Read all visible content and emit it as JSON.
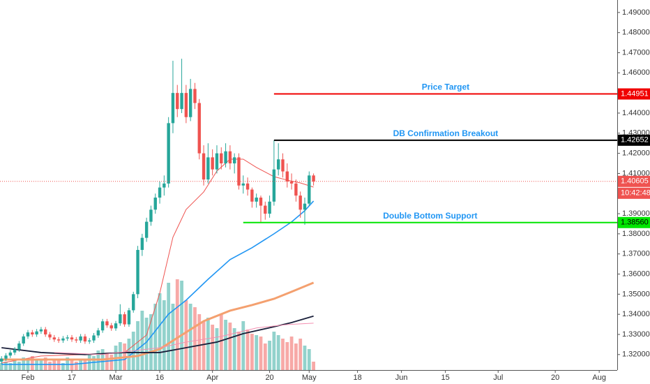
{
  "chart_data": {
    "type": "candlestick",
    "up_color": "#26a69a",
    "down_color": "#ef5350",
    "xlim": [
      -0.35,
      140.1
    ],
    "ylim": [
      1.3123,
      1.4962
    ],
    "xticks": [
      {
        "value": 6,
        "label": "Feb"
      },
      {
        "value": 16,
        "label": "17"
      },
      {
        "value": 26,
        "label": "Mar"
      },
      {
        "value": 36,
        "label": "16"
      },
      {
        "value": 48,
        "label": "Apr"
      },
      {
        "value": 61,
        "label": "20"
      },
      {
        "value": 70,
        "label": "May"
      },
      {
        "value": 81,
        "label": "18"
      },
      {
        "value": 91,
        "label": "Jun"
      },
      {
        "value": 101,
        "label": "15"
      },
      {
        "value": 113,
        "label": "Jul"
      },
      {
        "value": 126,
        "label": "20"
      },
      {
        "value": 136,
        "label": "Aug"
      }
    ],
    "yticks": [
      {
        "value": 1.49,
        "label": "1.49000"
      },
      {
        "value": 1.48,
        "label": "1.48000"
      },
      {
        "value": 1.47,
        "label": "1.47000"
      },
      {
        "value": 1.46,
        "label": "1.46000"
      },
      {
        "value": 1.44,
        "label": "1.44000"
      },
      {
        "value": 1.43,
        "label": "1.43000"
      },
      {
        "value": 1.42,
        "label": "1.42000"
      },
      {
        "value": 1.41,
        "label": "1.41000"
      },
      {
        "value": 1.39,
        "label": "1.39000"
      },
      {
        "value": 1.38,
        "label": "1.38000"
      },
      {
        "value": 1.37,
        "label": "1.37000"
      },
      {
        "value": 1.36,
        "label": "1.36000"
      },
      {
        "value": 1.35,
        "label": "1.35000"
      },
      {
        "value": 1.34,
        "label": "1.34000"
      },
      {
        "value": 1.33,
        "label": "1.33000"
      },
      {
        "value": 1.32,
        "label": "1.32000"
      }
    ],
    "candles": [
      [
        1.3165,
        1.3192,
        1.3153,
        1.318
      ],
      [
        1.318,
        1.3207,
        1.3168,
        1.3195
      ],
      [
        1.3195,
        1.3222,
        1.3183,
        1.321
      ],
      [
        1.321,
        1.3237,
        1.3198,
        1.3225
      ],
      [
        1.3225,
        1.3267,
        1.3213,
        1.3255
      ],
      [
        1.3255,
        1.3302,
        1.3243,
        1.329
      ],
      [
        1.329,
        1.3322,
        1.3278,
        1.331
      ],
      [
        1.331,
        1.3322,
        1.3288,
        1.33
      ],
      [
        1.33,
        1.3327,
        1.3288,
        1.3315
      ],
      [
        1.3315,
        1.3337,
        1.3303,
        1.3325
      ],
      [
        1.3325,
        1.3337,
        1.3288,
        1.33
      ],
      [
        1.33,
        1.3312,
        1.3273,
        1.3285
      ],
      [
        1.3285,
        1.3297,
        1.3263,
        1.3275
      ],
      [
        1.3275,
        1.3287,
        1.3258,
        1.327
      ],
      [
        1.327,
        1.3292,
        1.3258,
        1.328
      ],
      [
        1.328,
        1.3297,
        1.3268,
        1.3285
      ],
      [
        1.3285,
        1.3297,
        1.3263,
        1.3275
      ],
      [
        1.3275,
        1.3287,
        1.3258,
        1.327
      ],
      [
        1.327,
        1.3302,
        1.3258,
        1.329
      ],
      [
        1.329,
        1.3302,
        1.3253,
        1.3265
      ],
      [
        1.3265,
        1.3282,
        1.3253,
        1.327
      ],
      [
        1.327,
        1.3307,
        1.3258,
        1.3295
      ],
      [
        1.3295,
        1.3332,
        1.3283,
        1.332
      ],
      [
        1.332,
        1.3377,
        1.3308,
        1.3365
      ],
      [
        1.3365,
        1.3377,
        1.3333,
        1.3345
      ],
      [
        1.3345,
        1.3357,
        1.3318,
        1.333
      ],
      [
        1.333,
        1.3367,
        1.3318,
        1.3355
      ],
      [
        1.3355,
        1.345,
        1.3343,
        1.34
      ],
      [
        1.34,
        1.3412,
        1.3338,
        1.335
      ],
      [
        1.335,
        1.3432,
        1.3338,
        1.342
      ],
      [
        1.342,
        1.3512,
        1.3408,
        1.35
      ],
      [
        1.35,
        1.374,
        1.348,
        1.372
      ],
      [
        1.372,
        1.38,
        1.369,
        1.378
      ],
      [
        1.378,
        1.388,
        1.376,
        1.386
      ],
      [
        1.386,
        1.394,
        1.384,
        1.392
      ],
      [
        1.392,
        1.4,
        1.39,
        1.398
      ],
      [
        1.398,
        1.406,
        1.395,
        1.403
      ],
      [
        1.403,
        1.409,
        1.399,
        1.405
      ],
      [
        1.405,
        1.438,
        1.403,
        1.435
      ],
      [
        1.435,
        1.466,
        1.43,
        1.45
      ],
      [
        1.45,
        1.454,
        1.438,
        1.442
      ],
      [
        1.442,
        1.467,
        1.44,
        1.45
      ],
      [
        1.45,
        1.454,
        1.435,
        1.438
      ],
      [
        1.438,
        1.457,
        1.436,
        1.452
      ],
      [
        1.452,
        1.455,
        1.442,
        1.445
      ],
      [
        1.445,
        1.447,
        1.417,
        1.42
      ],
      [
        1.42,
        1.424,
        1.404,
        1.407
      ],
      [
        1.407,
        1.425,
        1.405,
        1.418
      ],
      [
        1.418,
        1.422,
        1.409,
        1.412
      ],
      [
        1.412,
        1.424,
        1.41,
        1.42
      ],
      [
        1.42,
        1.423,
        1.412,
        1.415
      ],
      [
        1.415,
        1.425,
        1.413,
        1.421
      ],
      [
        1.421,
        1.424,
        1.412,
        1.415
      ],
      [
        1.415,
        1.42,
        1.41,
        1.418
      ],
      [
        1.418,
        1.42,
        1.402,
        1.404
      ],
      [
        1.404,
        1.409,
        1.4,
        1.405
      ],
      [
        1.405,
        1.408,
        1.399,
        1.402
      ],
      [
        1.402,
        1.403,
        1.393,
        1.396
      ],
      [
        1.396,
        1.4,
        1.393,
        1.398
      ],
      [
        1.398,
        1.399,
        1.3856,
        1.394
      ],
      [
        1.394,
        1.396,
        1.387,
        1.39
      ],
      [
        1.39,
        1.399,
        1.388,
        1.396
      ],
      [
        1.396,
        1.4265,
        1.394,
        1.412
      ],
      [
        1.412,
        1.425,
        1.409,
        1.417
      ],
      [
        1.417,
        1.42,
        1.408,
        1.411
      ],
      [
        1.411,
        1.415,
        1.403,
        1.406
      ],
      [
        1.406,
        1.41,
        1.402,
        1.405
      ],
      [
        1.405,
        1.407,
        1.396,
        1.399
      ],
      [
        1.399,
        1.401,
        1.388,
        1.392
      ],
      [
        1.392,
        1.398,
        1.3845,
        1.395
      ],
      [
        1.395,
        1.411,
        1.394,
        1.409
      ],
      [
        1.409,
        1.41,
        1.404,
        1.406
      ]
    ],
    "volume": [
      10,
      12,
      10,
      14,
      12,
      18,
      16,
      20,
      15,
      14,
      18,
      12,
      16,
      15,
      10,
      18,
      14,
      12,
      16,
      15,
      22,
      20,
      28,
      30,
      25,
      22,
      35,
      40,
      38,
      45,
      55,
      70,
      85,
      75,
      80,
      95,
      110,
      100,
      125,
      95,
      130,
      128,
      100,
      95,
      90,
      80,
      70,
      75,
      65,
      60,
      80,
      72,
      68,
      60,
      55,
      70,
      58,
      52,
      50,
      48,
      38,
      42,
      55,
      50,
      45,
      40,
      48,
      38,
      45,
      35,
      30,
      12
    ],
    "moving_averages": [
      {
        "color": "#ef5350",
        "width": 1,
        "x": [
          0,
          9,
          19,
          28,
          33,
          36,
          39,
          42,
          46,
          49,
          52,
          55,
          58,
          62,
          65,
          68,
          71
        ],
        "values": [
          1.3158,
          1.3193,
          1.32,
          1.321,
          1.3297,
          1.3505,
          1.3783,
          1.3921,
          1.4008,
          1.4112,
          1.4171,
          1.4171,
          1.413,
          1.4084,
          1.4067,
          1.4053,
          1.4032
        ]
      },
      {
        "color": "#2196f3",
        "width": 1.6,
        "x": [
          0,
          16,
          28,
          33,
          38,
          42,
          47,
          52,
          57,
          62,
          66,
          69,
          71
        ],
        "values": [
          1.3151,
          1.3151,
          1.3175,
          1.3262,
          1.3401,
          1.347,
          1.3574,
          1.3672,
          1.3731,
          1.38,
          1.3859,
          1.3915,
          1.3963
        ]
      },
      {
        "color": "#f4a06f",
        "width": 3,
        "x": [
          0,
          23,
          31,
          36,
          41,
          46,
          52,
          57,
          62,
          66,
          71
        ],
        "values": [
          1.3175,
          1.3175,
          1.3193,
          1.3227,
          1.3297,
          1.3366,
          1.3418,
          1.3446,
          1.3477,
          1.3512,
          1.3557
        ]
      },
      {
        "color": "#1a1f3a",
        "width": 1.8,
        "x": [
          0,
          9,
          19,
          28,
          36,
          42,
          49,
          55,
          62,
          66,
          71
        ],
        "values": [
          1.3234,
          1.321,
          1.32,
          1.321,
          1.321,
          1.3234,
          1.3262,
          1.3304,
          1.3338,
          1.3359,
          1.3391
        ]
      },
      {
        "color": "#f48fb1",
        "width": 1,
        "x": [
          12,
          23,
          36,
          42,
          50,
          58,
          65,
          71
        ],
        "values": [
          1.321,
          1.32,
          1.3234,
          1.3262,
          1.329,
          1.3332,
          1.3349,
          1.3356
        ]
      }
    ],
    "levels": [
      {
        "label": "Price Target",
        "value": 1.44951,
        "color": "#f00000",
        "start": 62
      },
      {
        "label": "DB Confirmation Breakout",
        "value": 1.42652,
        "color": "#000000",
        "start": 62
      },
      {
        "label": "Double Bottom Support",
        "value": 1.3856,
        "value_label": "1.38560",
        "color": "#00e600",
        "start": 55
      }
    ],
    "last_price": {
      "value": 1.40605,
      "time": "10:42:48",
      "color": "#ef5350"
    }
  }
}
